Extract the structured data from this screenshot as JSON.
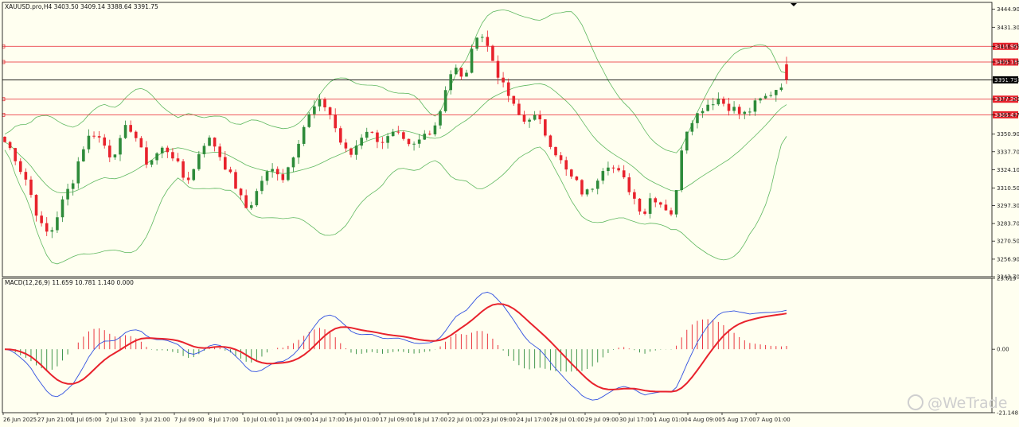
{
  "colors": {
    "background": "#fffff0",
    "bull": "#2e8b3a",
    "bear": "#e8222c",
    "band": "#5fb85f",
    "level_line": "#e8222c",
    "current_line": "#000000",
    "macd_line": "#e8222c",
    "signal_line": "#3050e0",
    "hist_pos": "#e8222c",
    "hist_neg": "#2e8b3a"
  },
  "header": {
    "title": "XAUUSD.pro,H4  3403.50  3409.14  3388.64  3391.75",
    "macd_label": "MACD(12,26,9)  11.659  10.781  1.140  0.000"
  },
  "watermark": "@WeTrade",
  "chart_data": [
    {
      "type": "candlestick",
      "symbol": "XAUUSD.pro",
      "timeframe": "H4",
      "ohlc_header": {
        "open": 3403.5,
        "high": 3409.14,
        "low": 3388.64,
        "close": 3391.75
      },
      "ylim": [
        3243.7,
        3450.0
      ],
      "y_ticks": [
        "3444.90",
        "3431.30",
        "3416.95",
        "3405.16",
        "3391.75",
        "3377.20",
        "3365.47",
        "3350.90",
        "3337.70",
        "3324.10",
        "3310.50",
        "3297.30",
        "3283.70",
        "3270.50",
        "3256.90",
        "3243.70"
      ],
      "x_ticks": [
        "26 Jun 2025",
        "27 Jun 21:00",
        "1 Jul 05:00",
        "2 Jul 13:00",
        "3 Jul 21:00",
        "7 Jul 09:00",
        "8 Jul 17:00",
        "10 Jul 01:00",
        "11 Jul 09:00",
        "14 Jul 17:00",
        "16 Jul 01:00",
        "17 Jul 09:00",
        "18 Jul 17:00",
        "22 Jul 01:00",
        "23 Jul 09:00",
        "24 Jul 17:00",
        "28 Jul 01:00",
        "29 Jul 09:00",
        "30 Jul 17:00",
        "1 Aug 01:00",
        "4 Aug 09:00",
        "5 Aug 17:00",
        "7 Aug 01:00"
      ],
      "horizontal_levels": [
        {
          "price": 3416.95,
          "label": "3416.95",
          "color": "#e8222c"
        },
        {
          "price": 3405.16,
          "label": "3405.16",
          "color": "#e8222c"
        },
        {
          "price": 3377.2,
          "label": "3377.20",
          "color": "#e8222c"
        },
        {
          "price": 3365.47,
          "label": "3365.47",
          "color": "#e8222c"
        }
      ],
      "current_price": {
        "price": 3391.75,
        "label": "3391.75"
      },
      "indicator": "Bollinger Bands",
      "anchor_closes": [
        3345,
        3338,
        3325,
        3315,
        3295,
        3280,
        3275,
        3290,
        3305,
        3315,
        3335,
        3348,
        3352,
        3345,
        3335,
        3340,
        3355,
        3355,
        3340,
        3328,
        3335,
        3340,
        3338,
        3328,
        3315,
        3322,
        3340,
        3348,
        3342,
        3330,
        3320,
        3308,
        3295,
        3300,
        3315,
        3322,
        3325,
        3318,
        3330,
        3345,
        3360,
        3370,
        3375,
        3370,
        3355,
        3340,
        3335,
        3345,
        3355,
        3350,
        3345,
        3348,
        3352,
        3345,
        3340,
        3345,
        3352,
        3355,
        3370,
        3395,
        3400,
        3390,
        3410,
        3430,
        3420,
        3405,
        3390,
        3380,
        3368,
        3360,
        3365,
        3362,
        3350,
        3340,
        3330,
        3320,
        3315,
        3305,
        3310,
        3320,
        3330,
        3325,
        3320,
        3310,
        3300,
        3290,
        3305,
        3300,
        3295,
        3290,
        3340,
        3360,
        3365,
        3372,
        3375,
        3378,
        3372,
        3370,
        3365,
        3368,
        3375,
        3378,
        3382,
        3387,
        3392
      ]
    },
    {
      "type": "macd",
      "params": [
        12,
        26,
        9
      ],
      "values": {
        "macd": 11.659,
        "signal": 10.781,
        "histogram": 1.14
      },
      "ylim": [
        -21.148,
        23.619
      ],
      "y_ticks": [
        "23.619",
        "0.00",
        "-21.148"
      ]
    }
  ]
}
